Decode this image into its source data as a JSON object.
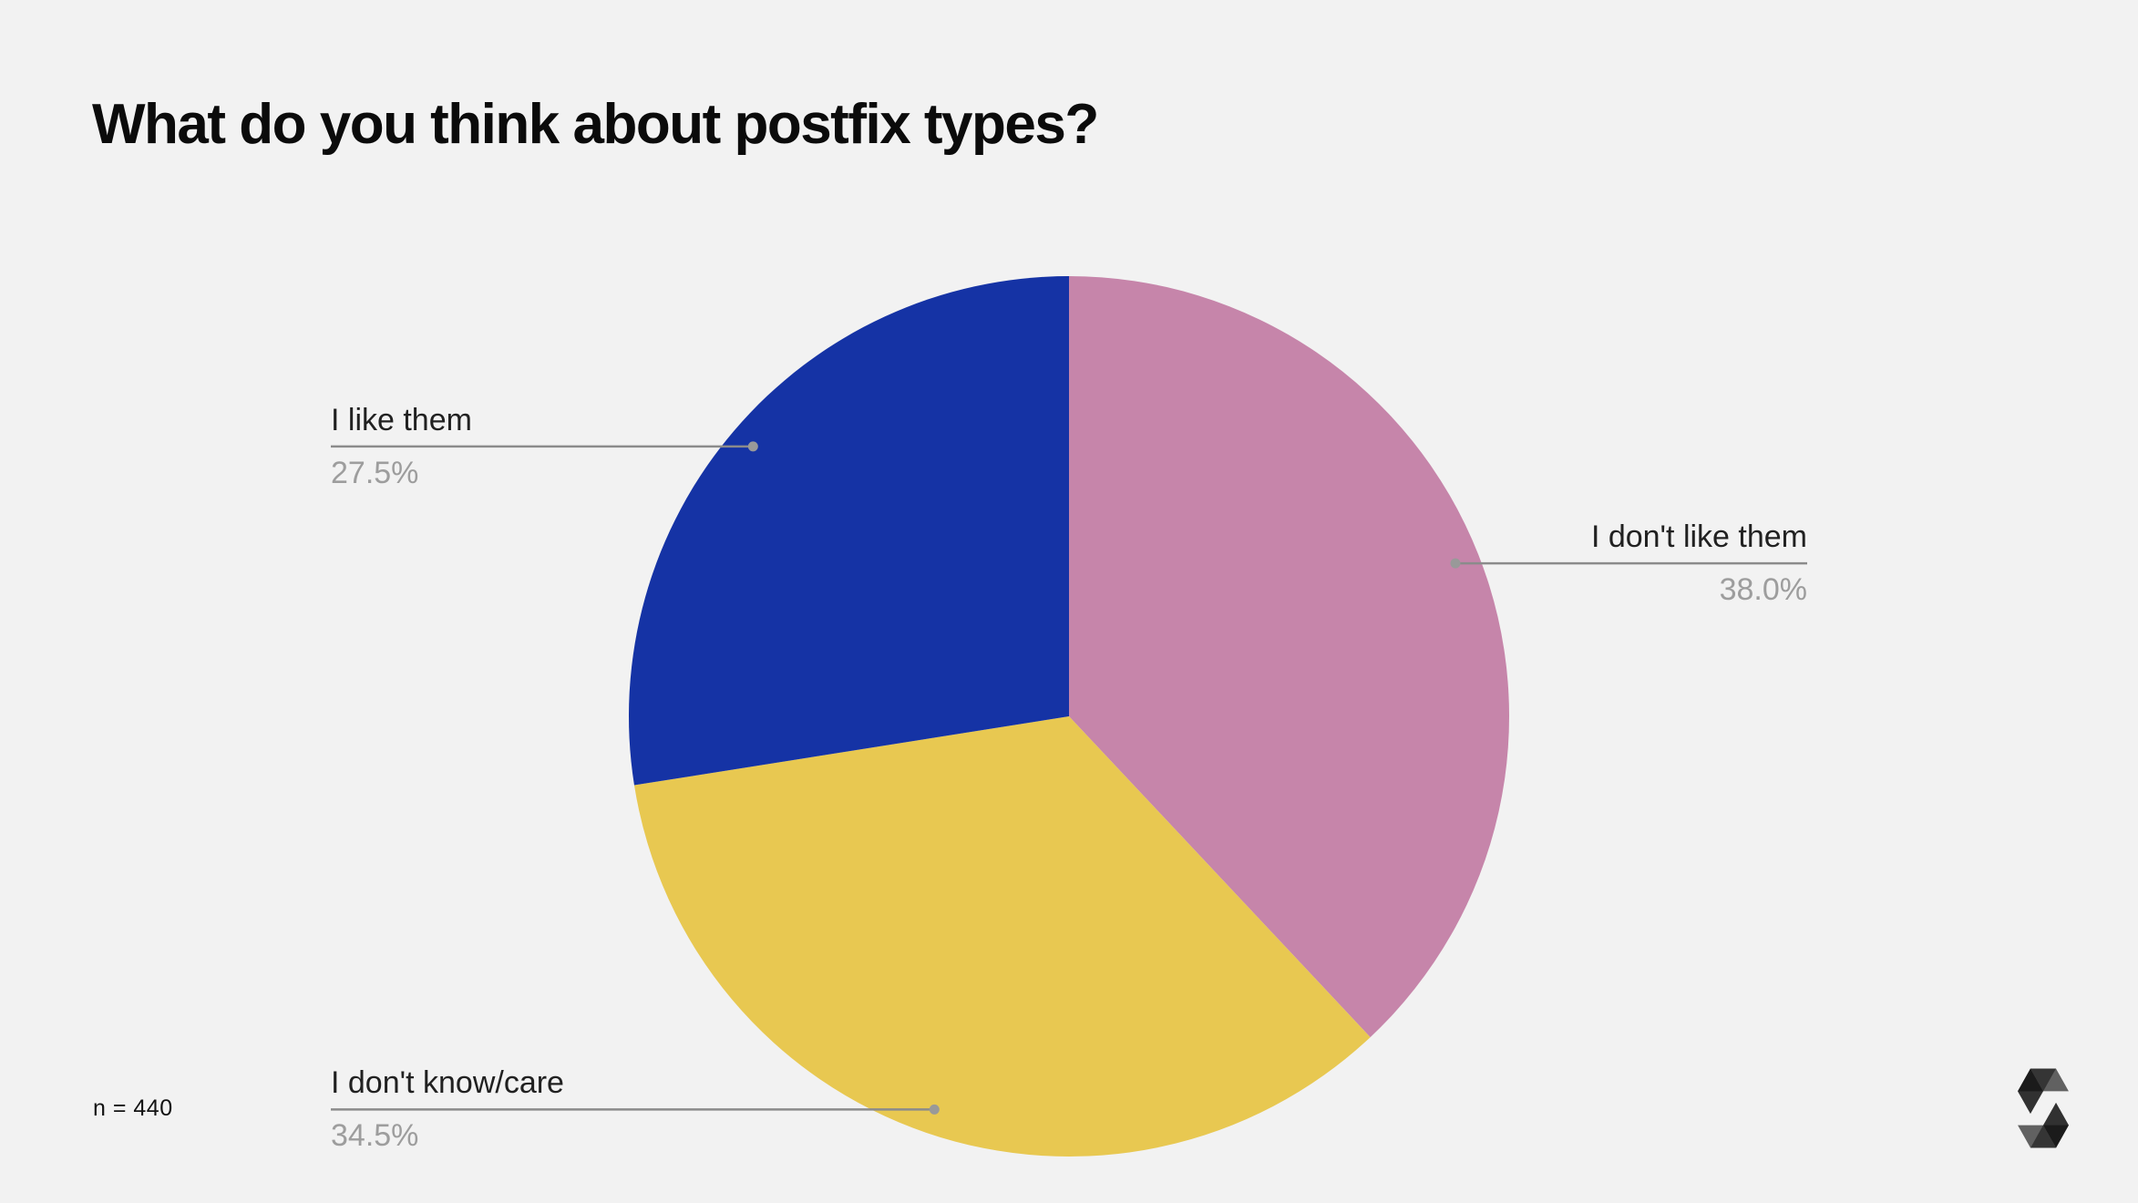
{
  "title": "What do you think about postfix types?",
  "sample_size_label": "n = 440",
  "colors": {
    "background": "#f2f2f2",
    "title_text": "#0b0b0b",
    "label_text": "#212121",
    "pct_text": "#9d9d9d",
    "leader_line": "#8b8b8b",
    "leader_dot": "#999999",
    "logo": "#000000"
  },
  "logo_icon": "solidity-logo",
  "chart_data": {
    "type": "pie",
    "title": "What do you think about postfix types?",
    "sample_size": 440,
    "start": "top",
    "direction": "clockwise",
    "legend": "none (leader-line labels)",
    "slices": [
      {
        "label": "I don't like them",
        "value_pct": 38.0,
        "display_pct": "38.0%",
        "color": "#c685aa",
        "label_side": "right"
      },
      {
        "label": "I don't know/care",
        "value_pct": 34.5,
        "display_pct": "34.5%",
        "color": "#e8c851",
        "label_side": "left"
      },
      {
        "label": "I like them",
        "value_pct": 27.5,
        "display_pct": "27.5%",
        "color": "#1533a5",
        "label_side": "left"
      }
    ]
  }
}
